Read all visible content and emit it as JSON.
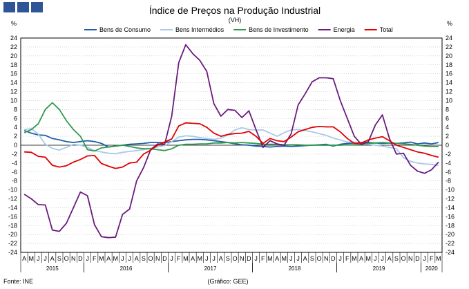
{
  "header": {
    "title": "Índice de Preços na Produção Industrial",
    "subtitle": "(VH)"
  },
  "axis_unit_left": "%",
  "axis_unit_right": "%",
  "footer": {
    "source": "Fonte: INE",
    "credit": "(Gráfico: GEE)"
  },
  "colors": {
    "logo": "#2f5597",
    "grid": "#c0c0c0"
  },
  "chart_data": {
    "type": "line",
    "title": "Índice de Preços na Produção Industrial",
    "subtitle": "(VH)",
    "ylabel": "%",
    "ylim": [
      -24,
      24
    ],
    "ytick_step": 2,
    "grid": true,
    "legend_position": "top",
    "x_start": "2015-04",
    "x_end": "2020-03",
    "months": [
      "A",
      "M",
      "J",
      "J",
      "A",
      "S",
      "O",
      "N",
      "D",
      "J",
      "F",
      "M",
      "A",
      "M",
      "J",
      "J",
      "A",
      "S",
      "O",
      "N",
      "D",
      "J",
      "F",
      "M",
      "A",
      "M",
      "J",
      "J",
      "A",
      "S",
      "O",
      "N",
      "D",
      "J",
      "F",
      "M",
      "A",
      "M",
      "J",
      "J",
      "A",
      "S",
      "O",
      "N",
      "D",
      "J",
      "F",
      "M",
      "A",
      "M",
      "J",
      "J",
      "A",
      "S",
      "O",
      "N",
      "D",
      "J",
      "F",
      "M"
    ],
    "years": [
      {
        "label": "2015",
        "from": 0,
        "to": 8
      },
      {
        "label": "2016",
        "from": 9,
        "to": 20
      },
      {
        "label": "2017",
        "from": 21,
        "to": 32
      },
      {
        "label": "2018",
        "from": 33,
        "to": 44
      },
      {
        "label": "2019",
        "from": 45,
        "to": 56
      },
      {
        "label": "2020",
        "from": 57,
        "to": 59
      }
    ],
    "series": [
      {
        "name": "Bens de Consumo",
        "color": "#1f5fa8",
        "values": [
          3.3,
          2.7,
          2.3,
          2.2,
          1.5,
          1.2,
          0.8,
          0.6,
          0.8,
          1.0,
          0.8,
          0.4,
          -0.4,
          -0.2,
          0.0,
          0.2,
          0.3,
          0.4,
          0.6,
          0.6,
          0.6,
          0.8,
          1.0,
          1.2,
          1.3,
          1.3,
          1.2,
          1.0,
          0.8,
          0.6,
          0.3,
          0.1,
          0.0,
          -0.2,
          -0.3,
          -0.4,
          -0.3,
          -0.2,
          -0.3,
          -0.2,
          -0.1,
          0.0,
          0.1,
          0.2,
          -0.2,
          0.2,
          0.4,
          0.5,
          0.6,
          0.6,
          0.5,
          0.4,
          0.5,
          0.4,
          0.5,
          0.7,
          0.3,
          0.5,
          0.3,
          0.6
        ]
      },
      {
        "name": "Bens Intermédios",
        "color": "#a9c8ea",
        "values": [
          3.5,
          3.7,
          2.5,
          0.2,
          -0.7,
          -1.1,
          -0.5,
          0.2,
          0.0,
          -0.5,
          -1.2,
          -1.5,
          -1.8,
          -1.9,
          -1.6,
          -1.4,
          -1.2,
          -1.0,
          -0.7,
          -0.4,
          -0.1,
          0.8,
          1.8,
          2.1,
          2.0,
          1.7,
          1.5,
          1.3,
          1.6,
          2.3,
          3.4,
          3.9,
          3.5,
          3.4,
          3.4,
          2.7,
          2.0,
          2.8,
          3.4,
          3.5,
          3.3,
          3.0,
          2.6,
          2.2,
          1.6,
          1.2,
          0.7,
          0.7,
          0.5,
          0.2,
          0.0,
          -0.2,
          -0.5,
          -0.8,
          -2.8,
          -3.6,
          -4.0,
          -4.2,
          -4.3,
          -4.5
        ]
      },
      {
        "name": "Bens de Investimento",
        "color": "#2e9a4c",
        "values": [
          2.8,
          3.5,
          4.8,
          8.0,
          9.5,
          8.0,
          5.5,
          3.5,
          2.0,
          -1.0,
          -1.3,
          -0.6,
          -0.4,
          -0.2,
          0.0,
          -0.3,
          -0.6,
          -0.8,
          -0.8,
          -1.0,
          -1.2,
          -0.8,
          0.0,
          0.2,
          0.2,
          0.3,
          0.3,
          0.5,
          0.5,
          0.6,
          0.5,
          0.6,
          0.5,
          0.4,
          0.2,
          0.2,
          0.2,
          0.1,
          0.1,
          0.1,
          0.0,
          0.0,
          0.0,
          0.0,
          0.0,
          0.0,
          0.1,
          0.1,
          0.2,
          0.4,
          0.5,
          0.6,
          0.5,
          0.4,
          0.3,
          0.2,
          0.0,
          -0.2,
          -0.3,
          -0.3
        ]
      },
      {
        "name": "Energia",
        "color": "#6a1b7c",
        "values": [
          -11.0,
          -12.0,
          -13.3,
          -13.4,
          -19.0,
          -19.3,
          -17.5,
          -14.0,
          -10.5,
          -11.3,
          -17.8,
          -20.5,
          -20.7,
          -20.6,
          -15.5,
          -14.3,
          -8.0,
          -5.0,
          -1.0,
          0.3,
          0.2,
          6.5,
          18.5,
          22.5,
          20.5,
          19.0,
          16.5,
          9.3,
          6.5,
          8.0,
          7.8,
          6.2,
          7.7,
          3.5,
          -0.5,
          1.0,
          0.3,
          0.0,
          2.5,
          9.0,
          11.5,
          14.2,
          15.1,
          15.1,
          14.9,
          10.0,
          6.0,
          2.0,
          0.2,
          0.8,
          4.5,
          6.8,
          1.5,
          -2.0,
          -1.8,
          -4.5,
          -5.8,
          -6.3,
          -5.5,
          -3.8
        ]
      },
      {
        "name": "Total",
        "color": "#e00000",
        "values": [
          -1.5,
          -1.6,
          -2.5,
          -2.7,
          -4.5,
          -4.9,
          -4.6,
          -3.8,
          -3.2,
          -2.4,
          -2.3,
          -4.1,
          -4.7,
          -5.2,
          -4.9,
          -4.0,
          -3.8,
          -2.0,
          -1.1,
          0.0,
          0.7,
          1.4,
          4.3,
          5.0,
          4.9,
          4.8,
          4.0,
          2.7,
          2.0,
          2.4,
          2.6,
          2.7,
          3.1,
          2.0,
          0.4,
          1.5,
          1.0,
          0.8,
          1.8,
          3.0,
          3.5,
          4.0,
          4.2,
          4.1,
          4.1,
          3.0,
          1.5,
          0.4,
          0.5,
          1.2,
          1.6,
          1.9,
          1.0,
          0.0,
          -0.5,
          -1.0,
          -1.5,
          -1.8,
          -2.3,
          -2.7
        ]
      }
    ]
  }
}
